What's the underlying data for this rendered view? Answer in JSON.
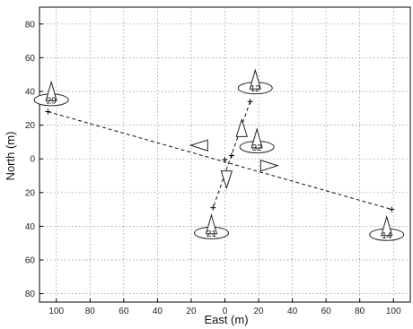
{
  "chart_data": {
    "type": "scatter",
    "title": "",
    "xlabel": "East (m)",
    "ylabel": "North (m)",
    "xlim": [
      -110,
      110
    ],
    "ylim": [
      -85,
      90
    ],
    "grid": true,
    "x_ticks": [
      -100,
      -80,
      -60,
      -40,
      -20,
      0,
      20,
      40,
      60,
      80,
      100
    ],
    "x_tick_labels": [
      "100",
      "80",
      "60",
      "40",
      "20",
      "0",
      "20",
      "40",
      "60",
      "80",
      "100"
    ],
    "y_ticks": [
      80,
      60,
      40,
      20,
      0,
      -20,
      -40,
      -60,
      -80
    ],
    "y_tick_labels": [
      "80",
      "60",
      "40",
      "20",
      "0",
      "20",
      "40",
      "60",
      "80"
    ],
    "satellites": [
      {
        "label": "29",
        "x": -103,
        "y": 35
      },
      {
        "label": "12",
        "x": 18,
        "y": 42
      },
      {
        "label": "32",
        "x": 19,
        "y": 7
      },
      {
        "label": "21",
        "x": -8,
        "y": -44
      },
      {
        "label": "14",
        "x": 96,
        "y": -45
      }
    ],
    "tracks": [
      {
        "from": [
          -105,
          28
        ],
        "to": [
          99,
          -30
        ]
      },
      {
        "from": [
          15,
          34
        ],
        "to": [
          -7,
          -29
        ]
      }
    ],
    "crosses": [
      {
        "x": -105,
        "y": 28
      },
      {
        "x": 99,
        "y": -30
      },
      {
        "x": 15,
        "y": 34
      },
      {
        "x": -7,
        "y": -29
      },
      {
        "x": 0,
        "y": -0.5
      },
      {
        "x": 4,
        "y": 2
      }
    ],
    "direction_arrows": [
      {
        "x": -15,
        "y": 8,
        "dir": "left"
      },
      {
        "x": 26,
        "y": -4,
        "dir": "right"
      },
      {
        "x": 10,
        "y": 18,
        "dir": "up"
      },
      {
        "x": 1,
        "y": -12,
        "dir": "down"
      }
    ]
  }
}
